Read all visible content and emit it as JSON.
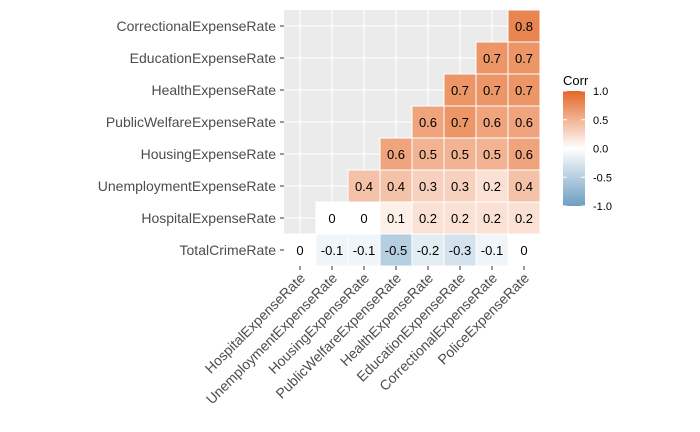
{
  "chart_data": {
    "type": "heatmap",
    "title": "",
    "xlabel": "",
    "ylabel": "",
    "x_categories": [
      "HospitalExpenseRate",
      "UnemploymentExpenseRate",
      "HousingExpenseRate",
      "PublicWelfareExpenseRate",
      "HealthExpenseRate",
      "EducationExpenseRate",
      "CorrectionalExpenseRate",
      "PoliceExpenseRate"
    ],
    "y_categories": [
      "TotalCrimeRate",
      "HospitalExpenseRate",
      "UnemploymentExpenseRate",
      "HousingExpenseRate",
      "PublicWelfareExpenseRate",
      "HealthExpenseRate",
      "EducationExpenseRate",
      "CorrectionalExpenseRate"
    ],
    "values": [
      [
        0,
        -0.1,
        -0.1,
        -0.5,
        -0.2,
        -0.3,
        -0.1,
        0
      ],
      [
        null,
        0,
        0,
        0.1,
        0.2,
        0.2,
        0.2,
        0.2
      ],
      [
        null,
        null,
        0.4,
        0.4,
        0.3,
        0.3,
        0.2,
        0.4
      ],
      [
        null,
        null,
        null,
        0.6,
        0.5,
        0.5,
        0.5,
        0.6
      ],
      [
        null,
        null,
        null,
        null,
        0.6,
        0.7,
        0.6,
        0.6
      ],
      [
        null,
        null,
        null,
        null,
        null,
        0.7,
        0.7,
        0.7
      ],
      [
        null,
        null,
        null,
        null,
        null,
        null,
        0.7,
        0.7
      ],
      [
        null,
        null,
        null,
        null,
        null,
        null,
        null,
        0.8
      ]
    ],
    "legend": {
      "title": "Corr",
      "ticks": [
        1.0,
        0.5,
        0.0,
        -0.5,
        -1.0
      ],
      "tick_labels": [
        "1.0",
        "0.5",
        "0.0",
        "-0.5",
        "-1.0"
      ],
      "position": "right",
      "range": [
        -1,
        1
      ]
    },
    "colors": {
      "low": "#6D9EC1",
      "mid": "#FFFFFF",
      "high": "#E46726",
      "panel_background": "#EBEBEB",
      "gridline": "#FFFFFF"
    },
    "grid": true
  }
}
